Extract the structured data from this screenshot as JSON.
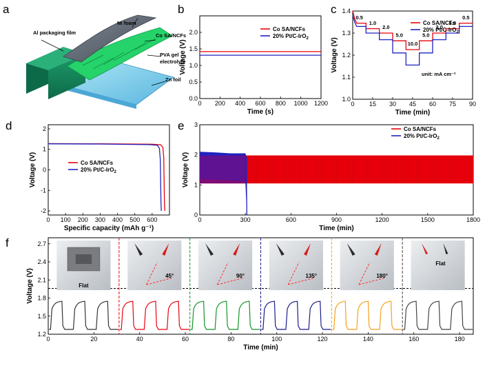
{
  "colors": {
    "cosa": "#e8000b",
    "pt": "#1f23c0",
    "green": "#14922a",
    "orange": "#f5a01c",
    "dark": "#333333",
    "navy": "#1a1a8c",
    "gray": "#444444"
  },
  "panel_a": {
    "label": "a",
    "layers": [
      "Al packaging film",
      "Ni foam",
      "Co SA/NCFs",
      "PVA gel electrolyte",
      "Zn foil"
    ]
  },
  "chart_data": [
    {
      "id": "b",
      "label": "b",
      "type": "line",
      "xlabel": "Time (s)",
      "ylabel": "Voltage (V)",
      "xlim": [
        0,
        1200
      ],
      "ylim": [
        0,
        2.5
      ],
      "xticks": [
        0,
        200,
        400,
        600,
        800,
        1000,
        1200
      ],
      "yticks": [
        0.0,
        0.5,
        1.0,
        1.5,
        2.0
      ],
      "series": [
        {
          "name": "Co SA/NCFs",
          "color": "#e8000b",
          "x": [
            0,
            1200
          ],
          "y": [
            1.42,
            1.42
          ]
        },
        {
          "name": "20% Pt/C-IrO2",
          "color": "#1f23c0",
          "x": [
            0,
            1200
          ],
          "y": [
            1.31,
            1.31
          ]
        }
      ]
    },
    {
      "id": "c",
      "label": "c",
      "type": "line",
      "xlabel": "Time (min)",
      "ylabel": "Voltage (V)",
      "xlim": [
        0,
        90
      ],
      "ylim": [
        1.0,
        1.4
      ],
      "xticks": [
        0,
        15,
        30,
        45,
        60,
        75,
        90
      ],
      "yticks": [
        1.0,
        1.1,
        1.2,
        1.3,
        1.4
      ],
      "unit_note": "unit: mA cm⁻²",
      "current_labels": [
        "0.5",
        "1.0",
        "2.0",
        "5.0",
        "10.0",
        "5.0",
        "2.0",
        "1.0",
        "0.5"
      ],
      "steps_x": [
        0,
        10,
        20,
        30,
        40,
        50,
        60,
        70,
        80,
        90
      ],
      "series": [
        {
          "name": "Co SA/NCFs",
          "color": "#e8000b",
          "start": 1.4,
          "steps": [
            1.345,
            1.32,
            1.3,
            1.265,
            1.225,
            1.265,
            1.3,
            1.32,
            1.345
          ]
        },
        {
          "name": "20% Pt/C-IrO2",
          "color": "#1f23c0",
          "start": 1.38,
          "steps": [
            1.33,
            1.3,
            1.27,
            1.21,
            1.155,
            1.21,
            1.27,
            1.3,
            1.33
          ]
        }
      ]
    },
    {
      "id": "d",
      "label": "d",
      "type": "line",
      "xlabel": "Specific capacity (mAh g⁻¹)",
      "ylabel": "Voltage (V)",
      "xlim": [
        0,
        700
      ],
      "ylim": [
        -2.2,
        2.2
      ],
      "xticks": [
        0,
        100,
        200,
        300,
        400,
        500,
        600
      ],
      "yticks": [
        -2,
        -1,
        0,
        1,
        2
      ],
      "series": [
        {
          "name": "Co SA/NCFs",
          "color": "#e8000b",
          "x": [
            0,
            300,
            600,
            650,
            662,
            667,
            669,
            671,
            673
          ],
          "y": [
            1.28,
            1.27,
            1.25,
            1.22,
            1.1,
            0.6,
            -0.5,
            -1.6,
            -2.0
          ]
        },
        {
          "name": "20% Pt/C-IrO2",
          "color": "#1f23c0",
          "x": [
            0,
            300,
            580,
            630,
            642,
            647,
            649,
            651,
            653
          ],
          "y": [
            1.27,
            1.26,
            1.23,
            1.2,
            1.05,
            0.5,
            -0.6,
            -1.6,
            -2.0
          ]
        }
      ]
    },
    {
      "id": "e",
      "label": "e",
      "type": "area",
      "xlabel": "Time (min)",
      "ylabel": "Voltage (V)",
      "xlim": [
        0,
        1800
      ],
      "ylim": [
        0,
        3
      ],
      "xticks": [
        0,
        300,
        600,
        900,
        1200,
        1500,
        1800
      ],
      "yticks": [
        0,
        1,
        2,
        3
      ],
      "series": [
        {
          "name": "Co SA/NCFs",
          "color": "#e8000b",
          "x": [
            0,
            1800
          ],
          "low": [
            1.05,
            1.05
          ],
          "high": [
            1.98,
            1.98
          ]
        },
        {
          "name": "20% Pt/C-IrO2",
          "color": "#1f23c0",
          "x": [
            0,
            100,
            200,
            300,
            310
          ],
          "low": [
            1.2,
            1.18,
            1.15,
            1.12,
            0.0
          ],
          "high": [
            2.1,
            2.08,
            2.05,
            2.05,
            1.9
          ]
        }
      ]
    },
    {
      "id": "f",
      "label": "f",
      "type": "line",
      "xlabel": "Time (min)",
      "ylabel": "Voltage (V)",
      "xlim": [
        0,
        186
      ],
      "ylim": [
        1.2,
        2.8
      ],
      "xticks": [
        0,
        20,
        40,
        60,
        80,
        100,
        120,
        140,
        160,
        180
      ],
      "yticks": [
        1.2,
        1.5,
        1.8,
        2.1,
        2.4,
        2.7
      ],
      "period_min": 10,
      "discharge_v": 1.28,
      "charge_v": 1.75,
      "dashed_level": 1.96,
      "segments": [
        {
          "state": "Flat",
          "x": [
            0,
            31
          ],
          "color": "#333333"
        },
        {
          "state": "45°",
          "x": [
            31,
            62
          ],
          "color": "#e8000b"
        },
        {
          "state": "90°",
          "x": [
            62,
            93
          ],
          "color": "#14922a"
        },
        {
          "state": "135°",
          "x": [
            93,
            124
          ],
          "color": "#1a1a8c"
        },
        {
          "state": "180°",
          "x": [
            124,
            155
          ],
          "color": "#f5a01c"
        },
        {
          "state": "Flat",
          "x": [
            155,
            186
          ],
          "color": "#444444"
        }
      ]
    }
  ],
  "legend_pt_sub": "2"
}
